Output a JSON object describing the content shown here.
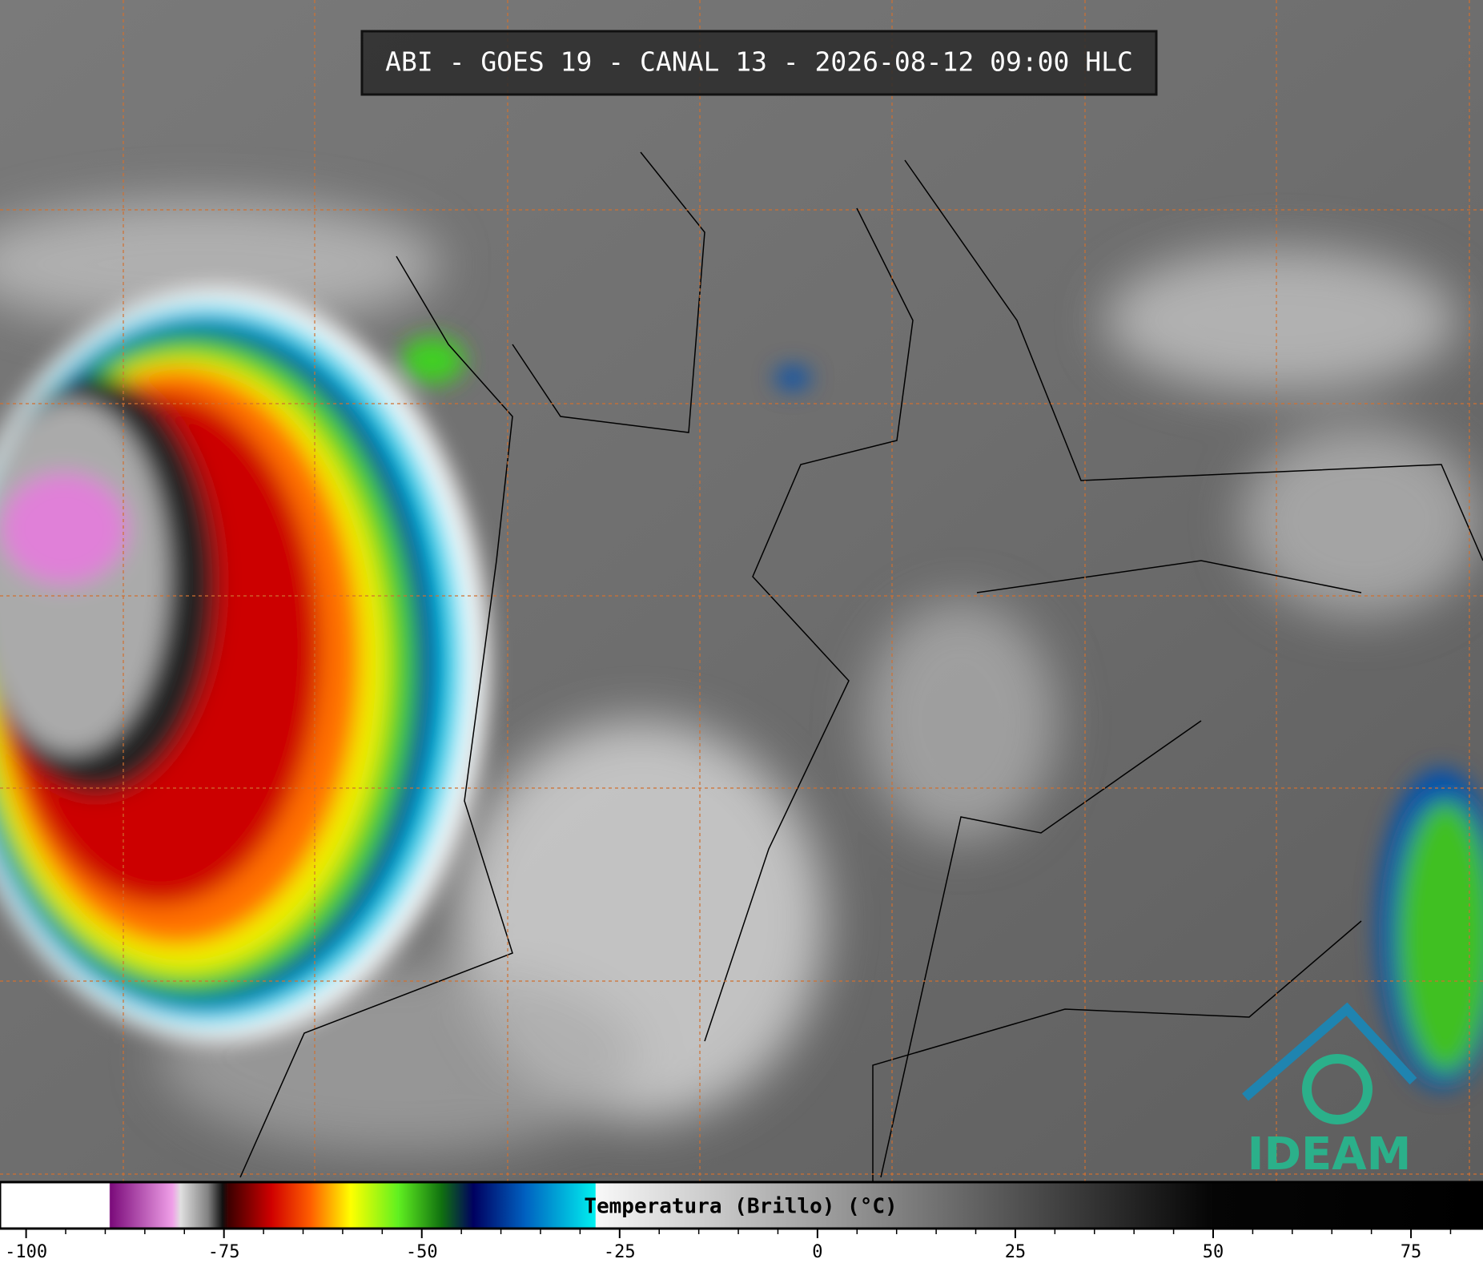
{
  "title": "ABI - GOES 19 - CANAL 13 - 2026-08-12 09:00 HLC",
  "logo": "IDEAM",
  "colorbar": {
    "label": "Temperatura (Brillo) (°C)",
    "lim": [
      -103.3,
      84.1
    ],
    "ticks": [
      -100,
      -75,
      -50,
      -25,
      0,
      25,
      50,
      75
    ],
    "minor_ticks": [
      -95,
      -90,
      -85,
      -80,
      -70,
      -65,
      -60,
      -55,
      -45,
      -40,
      -35,
      -30,
      -20,
      -15,
      -10,
      -5,
      5,
      10,
      15,
      20,
      30,
      35,
      40,
      45,
      55,
      60,
      65,
      70,
      80
    ],
    "colormap": [
      [
        -103.3,
        "#ffffff"
      ],
      [
        -89.5,
        "#ffffff"
      ],
      [
        -89.4,
        "#7a0a7a"
      ],
      [
        -81.5,
        "#f0a0e8"
      ],
      [
        -80.5,
        "#e0e0e0"
      ],
      [
        -77,
        "#808080"
      ],
      [
        -75.2,
        "#101010"
      ],
      [
        -74.5,
        "#3a0000"
      ],
      [
        -69,
        "#d00000"
      ],
      [
        -64,
        "#ff6000"
      ],
      [
        -59,
        "#ffff00"
      ],
      [
        -53,
        "#60f020"
      ],
      [
        -47.5,
        "#107010"
      ],
      [
        -43.5,
        "#000060"
      ],
      [
        -37,
        "#0060c0"
      ],
      [
        -28.1,
        "#00f0f0"
      ],
      [
        -28,
        "#f8f8f8"
      ],
      [
        49.7,
        "#050505"
      ],
      [
        84.1,
        "#000000"
      ]
    ]
  }
}
